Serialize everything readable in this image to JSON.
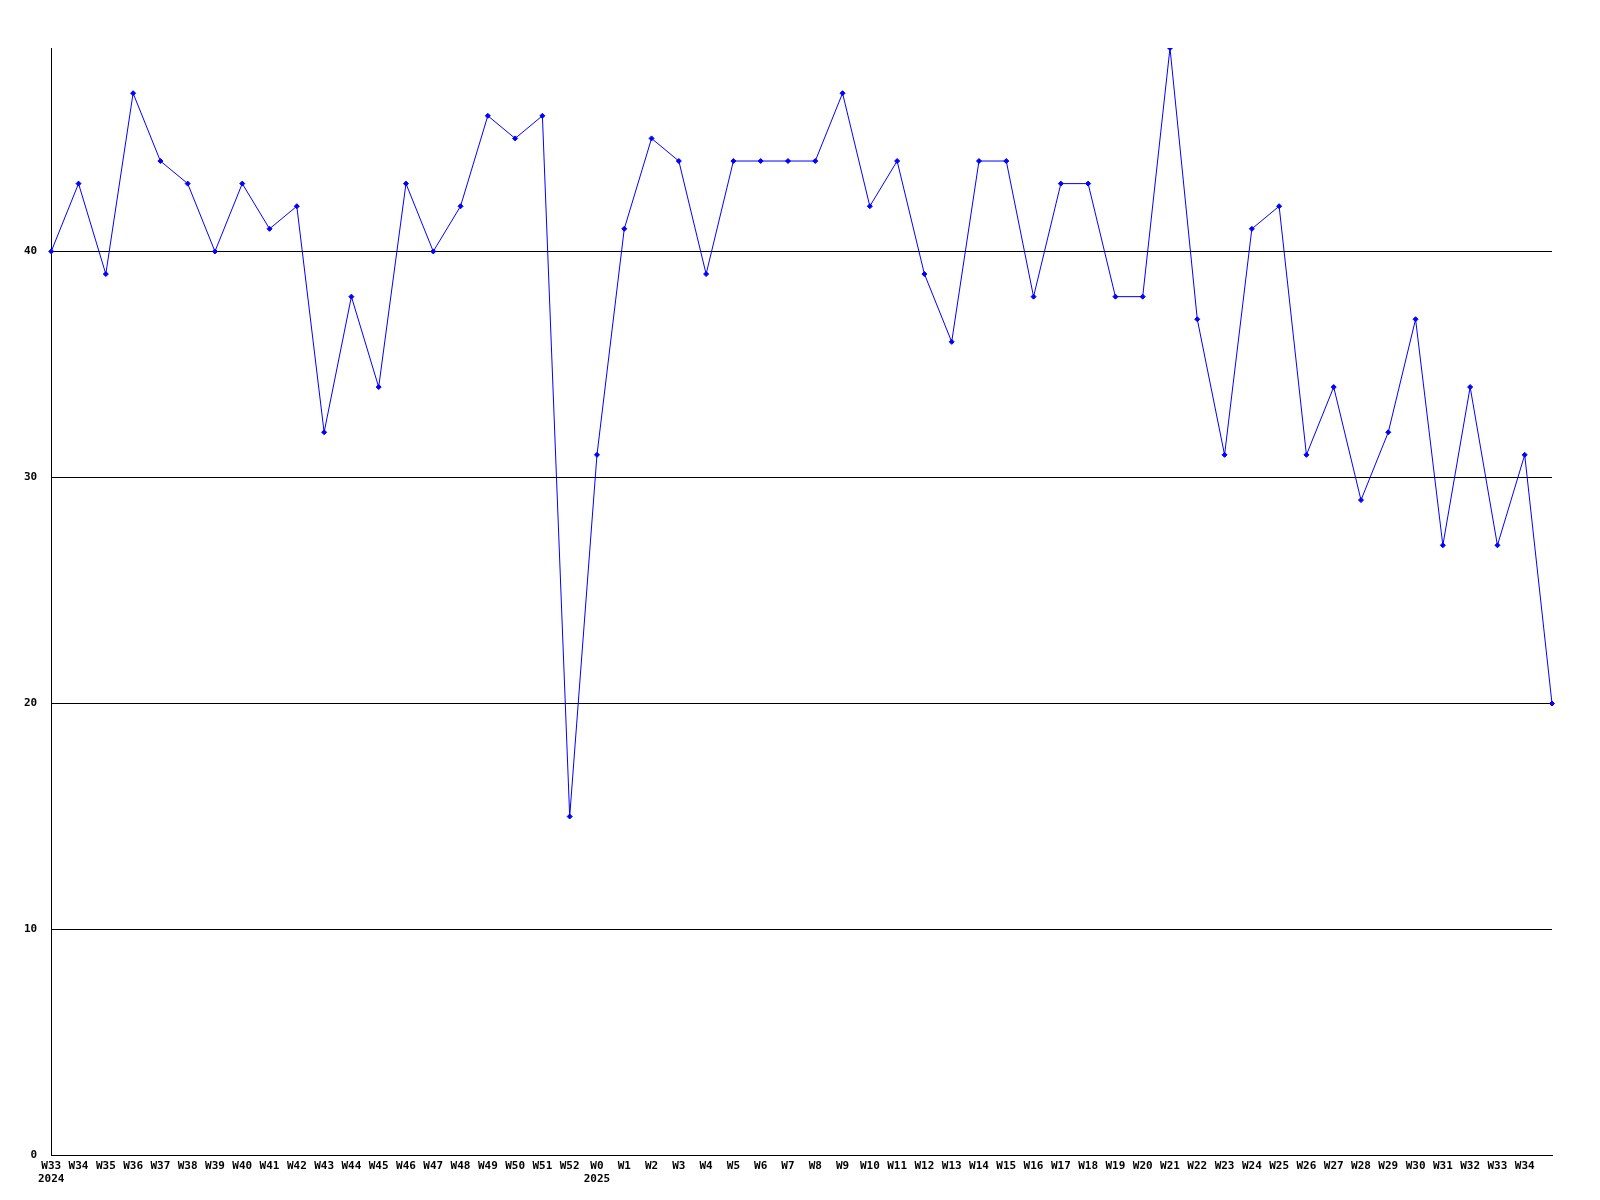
{
  "chart_data": {
    "type": "line",
    "categories": [
      "W33\n2024",
      "W34",
      "W35",
      "W36",
      "W37",
      "W38",
      "W39",
      "W40",
      "W41",
      "W42",
      "W43",
      "W44",
      "W45",
      "W46",
      "W47",
      "W48",
      "W49",
      "W50",
      "W51",
      "W52",
      "W0\n2025",
      "W1",
      "W2",
      "W3",
      "W4",
      "W5",
      "W6",
      "W7",
      "W8",
      "W9",
      "W10",
      "W11",
      "W12",
      "W13",
      "W14",
      "W15",
      "W16",
      "W17",
      "W18",
      "W19",
      "W20",
      "W21",
      "W22",
      "W23",
      "W24",
      "W25",
      "W26",
      "W27",
      "W28",
      "W29",
      "W30",
      "W31",
      "W32",
      "W33",
      "W34",
      null
    ],
    "series": [
      {
        "color": "#0000ff",
        "values": [
          40,
          43,
          39,
          47,
          44,
          43,
          40,
          43,
          41,
          42,
          32,
          38,
          34,
          43,
          40,
          42,
          46,
          45,
          46,
          15,
          31,
          41,
          45,
          44,
          39,
          44,
          44,
          44,
          44,
          47,
          42,
          44,
          39,
          36,
          44,
          44,
          38,
          43,
          43,
          38,
          38,
          49,
          37,
          31,
          41,
          42,
          31,
          34,
          29,
          32,
          37,
          27,
          34,
          27,
          31,
          20
        ]
      }
    ],
    "ylim": [
      0,
      49
    ],
    "yticks": [
      0,
      10,
      20,
      30,
      40
    ],
    "grid": "y",
    "legend": false,
    "marker": "diamond",
    "line_style": "solid"
  }
}
